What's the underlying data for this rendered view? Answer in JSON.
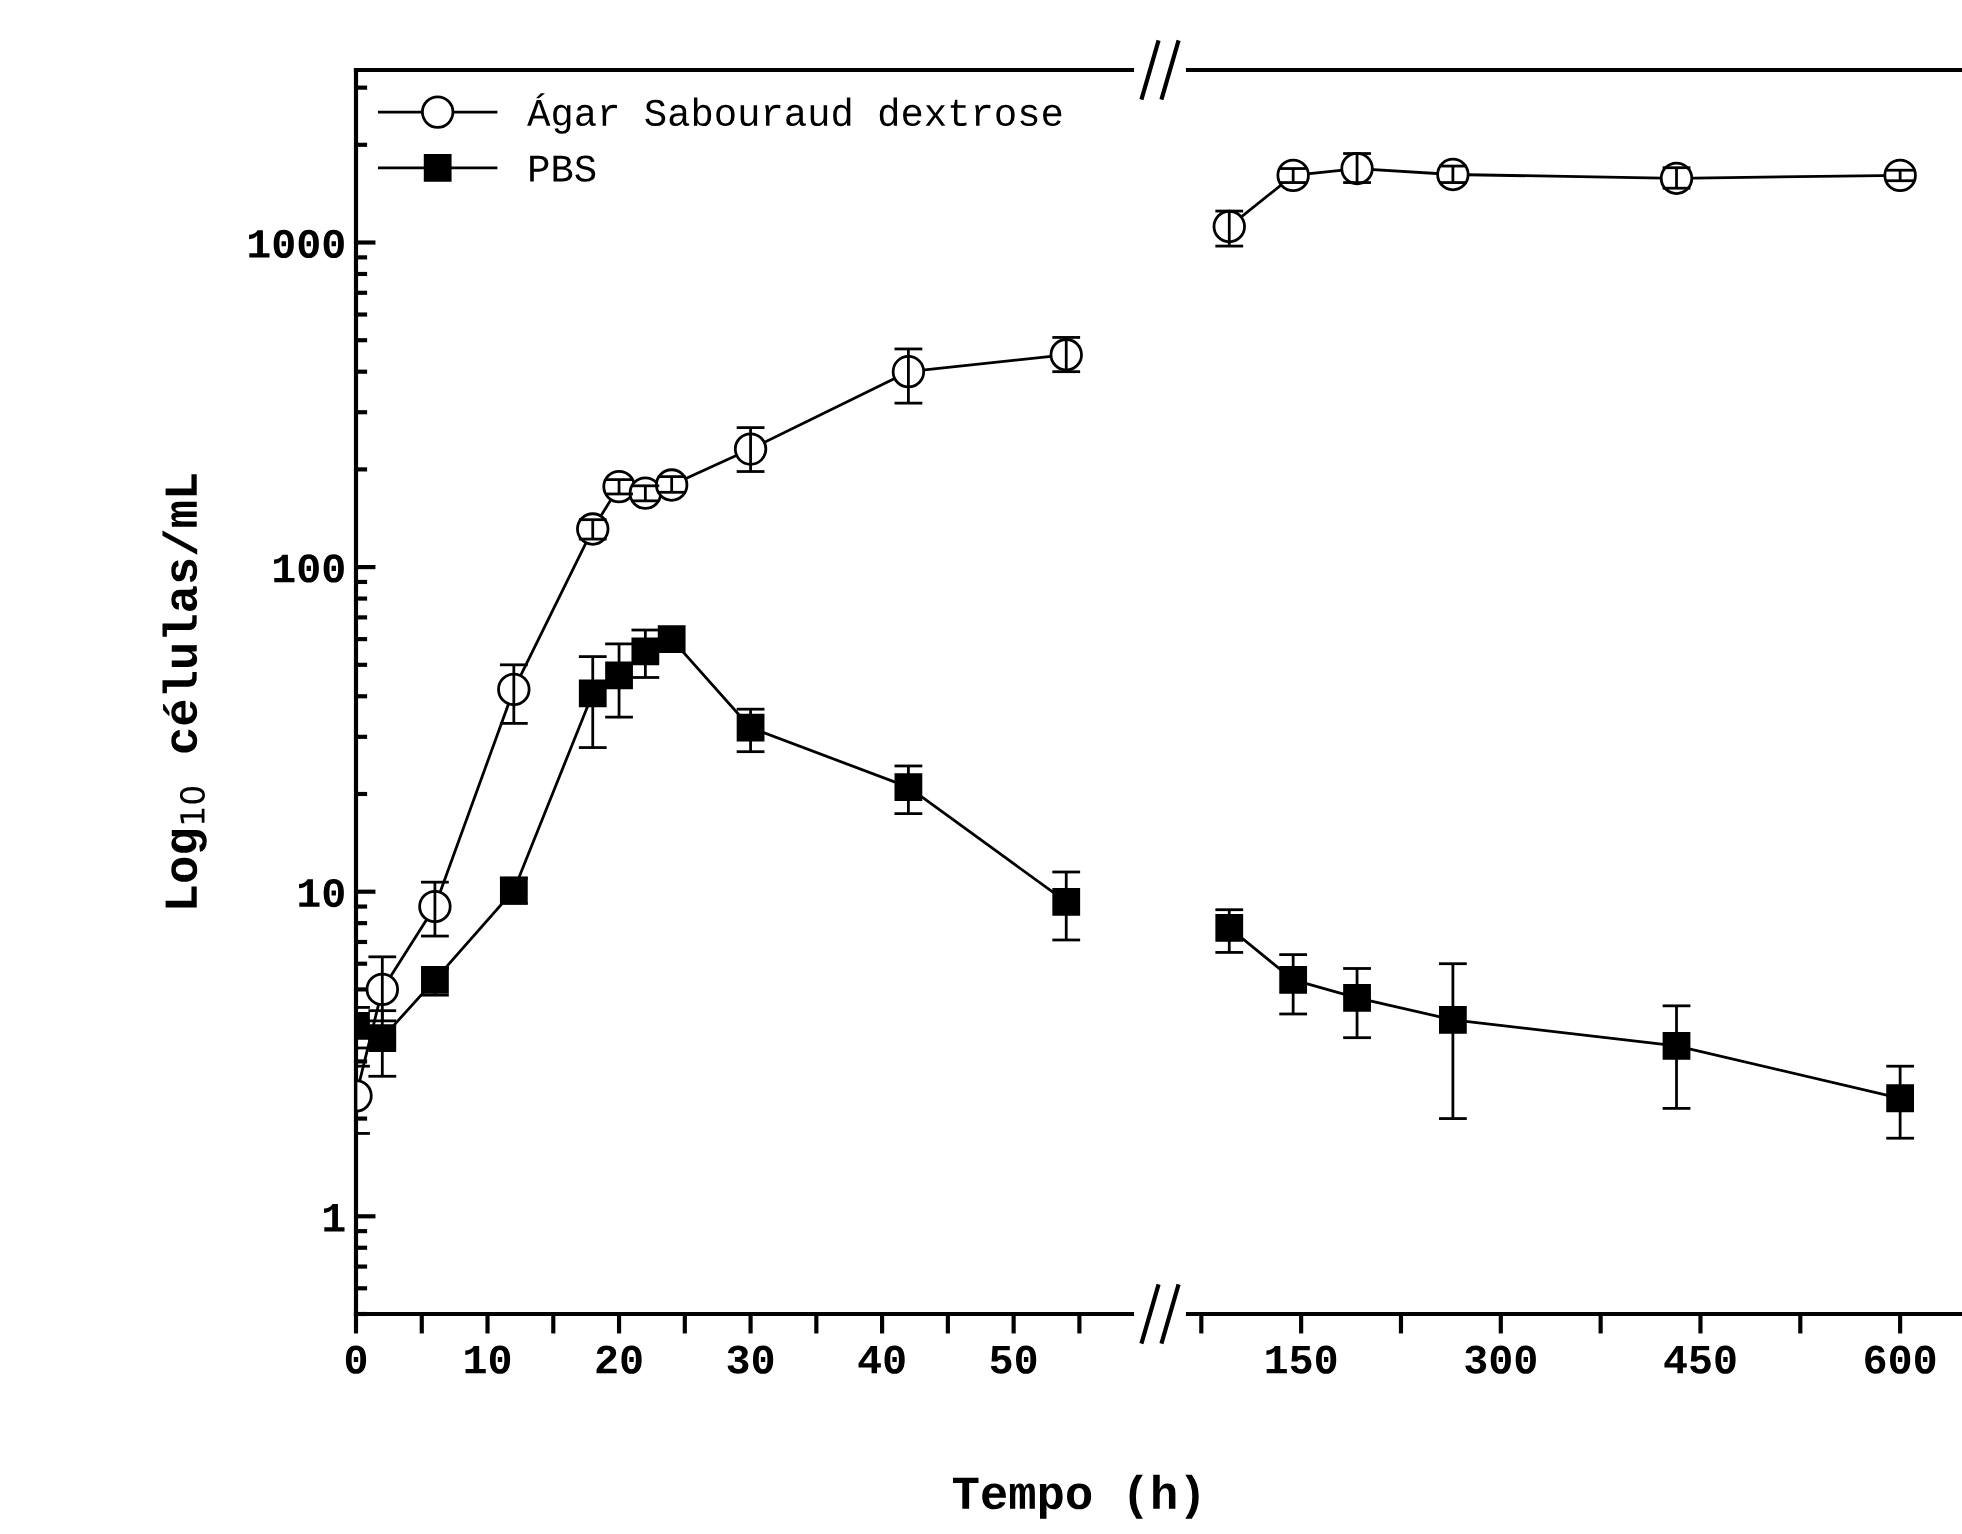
{
  "chart_data": [
    {
      "type": "line",
      "xlabel": "Tempo (h)",
      "ylabel": "Log$_{10}$ células/mL",
      "log": "y",
      "legend": "top left",
      "grid": false,
      "x": [
        0,
        2,
        6,
        12,
        18,
        20,
        22,
        24,
        30,
        42,
        54
      ],
      "xlim": [
        0,
        59
      ],
      "xticks": [
        0,
        {
          "value": 5,
          "label": null
        },
        10,
        {
          "value": 15,
          "label": null
        },
        20,
        {
          "value": 25,
          "label": null
        },
        30,
        {
          "value": 35,
          "label": null
        },
        40,
        {
          "value": 45,
          "label": null
        },
        50,
        {
          "value": 55,
          "label": null
        }
      ],
      "ylim": [
        0.5,
        3400
      ],
      "yticks": [
        1,
        10,
        100,
        1000
      ],
      "series": [
        {
          "name": "Ágar Sabouraud dextrose",
          "color": "#000000",
          "marker": "circle",
          "values": [
            2.35,
            5.0,
            9.0,
            42,
            131,
            177,
            169,
            179,
            231,
            400,
            451
          ],
          "errors": [
            [
              1.8,
              2.9
            ],
            [
              4.0,
              6.3
            ],
            [
              7.3,
              10.7
            ],
            [
              33,
              50
            ],
            [
              122,
              140
            ],
            [
              168,
              186
            ],
            [
              160,
              178
            ],
            [
              170,
              190
            ],
            [
              197,
              269
            ],
            [
              320,
              470
            ],
            [
              400,
              510
            ]
          ]
        },
        {
          "name": "PBS",
          "color": "#000000",
          "marker": "square",
          "values": [
            3.86,
            3.54,
            5.35,
            10.1,
            40.8,
            46.4,
            55,
            60,
            32,
            21,
            9.3
          ],
          "errors": [
            [
              3.3,
              4.4
            ],
            [
              2.7,
              4.3
            ],
            [
              4.8,
              5.8
            ],
            [
              9.2,
              11
            ],
            [
              27.8,
              53
            ],
            [
              34.5,
              58
            ],
            [
              45.7,
              64
            ],
            null,
            [
              27,
              36.5
            ],
            [
              17.4,
              24.4
            ],
            [
              7.1,
              11.5
            ]
          ]
        }
      ]
    },
    {
      "type": "line",
      "log": "y",
      "grid": false,
      "tick_labels": "x",
      "x": [
        96,
        144,
        192,
        264,
        432,
        600
      ],
      "xlim": [
        65,
        645
      ],
      "xticks": [
        {
          "value": 75,
          "label": null
        },
        150,
        {
          "value": 225,
          "label": null
        },
        300,
        {
          "value": 375,
          "label": null
        },
        450,
        {
          "value": 525,
          "label": null
        },
        600
      ],
      "ylim": [
        0.5,
        3400
      ],
      "series": [
        {
          "color": "#000000",
          "marker": "circle",
          "values": [
            1120,
            1610,
            1690,
            1620,
            1577,
            1610
          ],
          "errors": [
            [
              975,
              1250
            ],
            [
              1530,
              1690
            ],
            [
              1530,
              1880
            ],
            [
              1530,
              1720
            ],
            [
              1470,
              1700
            ],
            [
              1550,
              1670
            ]
          ]
        },
        {
          "color": "#000000",
          "marker": "square",
          "values": [
            7.74,
            5.35,
            4.71,
            4.03,
            3.35,
            2.31
          ],
          "errors": [
            [
              6.5,
              8.8
            ],
            [
              4.2,
              6.4
            ],
            [
              3.55,
              5.8
            ],
            [
              2.0,
              6.0
            ],
            [
              2.15,
              4.45
            ],
            [
              1.74,
              2.9
            ]
          ]
        }
      ]
    }
  ]
}
